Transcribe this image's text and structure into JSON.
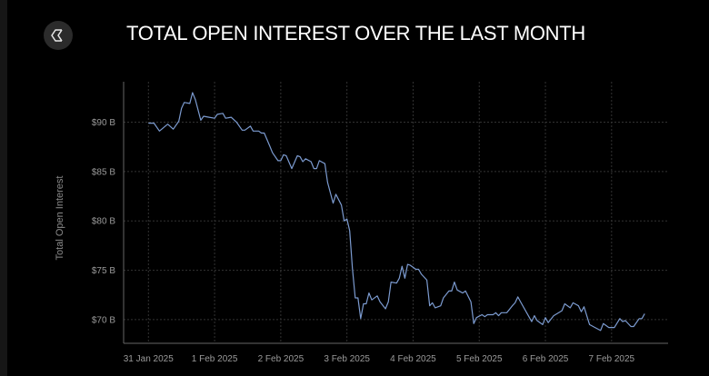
{
  "header": {
    "title": "TOTAL OPEN INTEREST OVER THE LAST MONTH",
    "logo_icon": "hexagon-sigma-logo-icon"
  },
  "chart_data": {
    "type": "line",
    "title": "TOTAL OPEN INTEREST OVER THE LAST MONTH",
    "xlabel": "",
    "ylabel": "Total Open Interest",
    "xlim": [
      "2025-01-30T15:00",
      "2025-02-07T20:30"
    ],
    "ylim": [
      67.6,
      94.1
    ],
    "x_ticks": [
      "2025-01-31T00:00",
      "2025-02-01T00:00",
      "2025-02-02T00:00",
      "2025-02-03T00:00",
      "2025-02-04T00:00",
      "2025-02-05T00:00",
      "2025-02-06T00:00",
      "2025-02-07T00:00"
    ],
    "x_tick_labels": [
      "31 Jan 2025",
      "1 Feb 2025",
      "2 Feb 2025",
      "3 Feb 2025",
      "4 Feb 2025",
      "5 Feb 2025",
      "6 Feb 2025",
      "7 Feb 2025"
    ],
    "y_ticks": [
      70,
      75,
      80,
      85,
      90
    ],
    "y_tick_labels": [
      "$70 B",
      "$75 B",
      "$80 B",
      "$85 B",
      "$90 B"
    ],
    "grid": true,
    "colors": {
      "line": "#7c9bd0",
      "grid": "#333333",
      "background": "#000000"
    },
    "series": [
      {
        "points": [
          [
            "2025-01-31T00:00",
            89.9
          ],
          [
            "2025-01-31T02:00",
            89.9
          ],
          [
            "2025-01-31T04:00",
            89.1
          ],
          [
            "2025-01-31T07:00",
            89.8
          ],
          [
            "2025-01-31T09:00",
            89.3
          ],
          [
            "2025-01-31T11:00",
            90.1
          ],
          [
            "2025-01-31T12:00",
            91.4
          ],
          [
            "2025-01-31T13:00",
            92.0
          ],
          [
            "2025-01-31T15:00",
            91.9
          ],
          [
            "2025-01-31T16:00",
            93.0
          ],
          [
            "2025-01-31T17:00",
            92.3
          ],
          [
            "2025-01-31T19:00",
            90.2
          ],
          [
            "2025-01-31T20:00",
            90.6
          ],
          [
            "2025-01-31T22:00",
            90.5
          ],
          [
            "2025-02-01T00:00",
            90.4
          ],
          [
            "2025-02-01T01:00",
            90.8
          ],
          [
            "2025-02-01T03:00",
            90.9
          ],
          [
            "2025-02-01T04:00",
            90.4
          ],
          [
            "2025-02-01T06:00",
            90.5
          ],
          [
            "2025-02-01T08:00",
            90.0
          ],
          [
            "2025-02-01T10:00",
            89.2
          ],
          [
            "2025-02-01T11:00",
            89.2
          ],
          [
            "2025-02-01T13:00",
            89.6
          ],
          [
            "2025-02-01T14:00",
            89.1
          ],
          [
            "2025-02-01T16:00",
            89.1
          ],
          [
            "2025-02-01T17:00",
            88.9
          ],
          [
            "2025-02-01T18:00",
            88.9
          ],
          [
            "2025-02-01T20:00",
            87.6
          ],
          [
            "2025-02-01T21:00",
            86.9
          ],
          [
            "2025-02-01T23:00",
            86.1
          ],
          [
            "2025-02-02T00:00",
            86.1
          ],
          [
            "2025-02-02T01:00",
            86.7
          ],
          [
            "2025-02-02T02:00",
            86.6
          ],
          [
            "2025-02-02T04:00",
            85.3
          ],
          [
            "2025-02-02T06:00",
            86.6
          ],
          [
            "2025-02-02T07:00",
            86.5
          ],
          [
            "2025-02-02T08:00",
            86.0
          ],
          [
            "2025-02-02T09:00",
            86.3
          ],
          [
            "2025-02-02T11:00",
            86.0
          ],
          [
            "2025-02-02T12:00",
            85.3
          ],
          [
            "2025-02-02T13:00",
            85.3
          ],
          [
            "2025-02-02T14:00",
            86.1
          ],
          [
            "2025-02-02T16:00",
            85.8
          ],
          [
            "2025-02-02T17:00",
            83.9
          ],
          [
            "2025-02-02T19:00",
            81.8
          ],
          [
            "2025-02-02T20:00",
            82.7
          ],
          [
            "2025-02-02T22:00",
            81.6
          ],
          [
            "2025-02-02T23:00",
            80.0
          ],
          [
            "2025-02-03T00:00",
            80.2
          ],
          [
            "2025-02-03T01:00",
            79.0
          ],
          [
            "2025-02-03T02:00",
            75.2
          ],
          [
            "2025-02-03T03:00",
            72.2
          ],
          [
            "2025-02-03T04:00",
            72.2
          ],
          [
            "2025-02-03T05:00",
            70.1
          ],
          [
            "2025-02-03T06:00",
            71.6
          ],
          [
            "2025-02-03T07:00",
            71.6
          ],
          [
            "2025-02-03T08:00",
            72.7
          ],
          [
            "2025-02-03T09:00",
            72.0
          ],
          [
            "2025-02-03T11:00",
            72.4
          ],
          [
            "2025-02-03T12:00",
            71.8
          ],
          [
            "2025-02-03T14:00",
            71.1
          ],
          [
            "2025-02-03T15:00",
            71.8
          ],
          [
            "2025-02-03T16:00",
            73.8
          ],
          [
            "2025-02-03T18:00",
            73.7
          ],
          [
            "2025-02-03T19:00",
            74.2
          ],
          [
            "2025-02-03T20:00",
            75.4
          ],
          [
            "2025-02-03T21:00",
            74.2
          ],
          [
            "2025-02-03T22:00",
            75.6
          ],
          [
            "2025-02-03T23:00",
            75.5
          ],
          [
            "2025-02-04T01:00",
            75.1
          ],
          [
            "2025-02-04T02:00",
            75.1
          ],
          [
            "2025-02-04T03:00",
            74.6
          ],
          [
            "2025-02-04T05:00",
            74.0
          ],
          [
            "2025-02-04T06:00",
            71.4
          ],
          [
            "2025-02-04T07:00",
            71.7
          ],
          [
            "2025-02-04T08:00",
            71.2
          ],
          [
            "2025-02-04T10:00",
            71.4
          ],
          [
            "2025-02-04T11:00",
            72.2
          ],
          [
            "2025-02-04T13:00",
            72.9
          ],
          [
            "2025-02-04T14:00",
            72.9
          ],
          [
            "2025-02-04T15:00",
            73.8
          ],
          [
            "2025-02-04T16:00",
            73.0
          ],
          [
            "2025-02-04T18:00",
            72.7
          ],
          [
            "2025-02-04T19:00",
            72.9
          ],
          [
            "2025-02-04T21:00",
            71.8
          ],
          [
            "2025-02-04T22:00",
            69.6
          ],
          [
            "2025-02-04T23:00",
            70.2
          ],
          [
            "2025-02-05T01:00",
            70.5
          ],
          [
            "2025-02-05T02:00",
            70.3
          ],
          [
            "2025-02-05T03:00",
            70.5
          ],
          [
            "2025-02-05T05:00",
            70.5
          ],
          [
            "2025-02-05T06:00",
            70.7
          ],
          [
            "2025-02-05T07:00",
            70.4
          ],
          [
            "2025-02-05T08:00",
            70.7
          ],
          [
            "2025-02-05T10:00",
            70.7
          ],
          [
            "2025-02-05T12:00",
            71.4
          ],
          [
            "2025-02-05T13:00",
            71.7
          ],
          [
            "2025-02-05T14:00",
            72.3
          ],
          [
            "2025-02-05T15:00",
            71.8
          ],
          [
            "2025-02-05T19:00",
            69.8
          ],
          [
            "2025-02-05T20:00",
            70.4
          ],
          [
            "2025-02-05T21:00",
            69.9
          ],
          [
            "2025-02-05T23:00",
            69.5
          ],
          [
            "2025-02-06T00:00",
            70.2
          ],
          [
            "2025-02-06T01:00",
            69.7
          ],
          [
            "2025-02-06T03:00",
            70.4
          ],
          [
            "2025-02-06T06:00",
            70.9
          ],
          [
            "2025-02-06T07:00",
            71.6
          ],
          [
            "2025-02-06T09:00",
            71.2
          ],
          [
            "2025-02-06T10:00",
            71.7
          ],
          [
            "2025-02-06T12:00",
            71.4
          ],
          [
            "2025-02-06T13:00",
            70.8
          ],
          [
            "2025-02-06T14:00",
            71.3
          ],
          [
            "2025-02-06T16:00",
            69.5
          ],
          [
            "2025-02-06T18:00",
            69.2
          ],
          [
            "2025-02-06T20:00",
            68.9
          ],
          [
            "2025-02-06T21:00",
            69.6
          ],
          [
            "2025-02-06T23:00",
            69.2
          ],
          [
            "2025-02-07T01:00",
            69.2
          ],
          [
            "2025-02-07T03:00",
            70.1
          ],
          [
            "2025-02-07T04:00",
            69.8
          ],
          [
            "2025-02-07T05:00",
            69.9
          ],
          [
            "2025-02-07T07:00",
            69.3
          ],
          [
            "2025-02-07T08:00",
            69.3
          ],
          [
            "2025-02-07T10:00",
            70.1
          ],
          [
            "2025-02-07T11:00",
            70.1
          ],
          [
            "2025-02-07T12:00",
            70.6
          ]
        ]
      }
    ]
  }
}
